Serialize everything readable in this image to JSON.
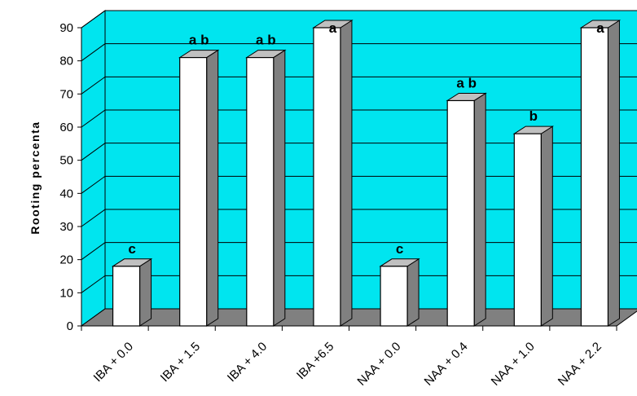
{
  "chart_data": {
    "type": "bar",
    "title": "",
    "xlabel": "",
    "ylabel": "Rooting percenta",
    "categories": [
      "IBA + 0.0",
      "IBA + 1.5",
      "IBA + 4.0",
      "IBA +6.5",
      "NAA + 0.0",
      "NAA + 0.4",
      "NAA + 1.0",
      "NAA + 2.2"
    ],
    "values": [
      18,
      81,
      81,
      90,
      18,
      68,
      58,
      90
    ],
    "data_labels": [
      "c",
      "a b",
      "a b",
      "a",
      "c",
      "a b",
      "b",
      "a"
    ],
    "ylim": [
      0,
      90
    ],
    "yticks": [
      0,
      10,
      20,
      30,
      40,
      50,
      60,
      70,
      80,
      90
    ],
    "grid": true,
    "style": "3d-bar",
    "colors": {
      "wall": "#00e5ef",
      "floor": "#808080",
      "bar_face": "#ffffff",
      "bar_side": "#808080",
      "bar_top": "#c0c0c0"
    }
  }
}
